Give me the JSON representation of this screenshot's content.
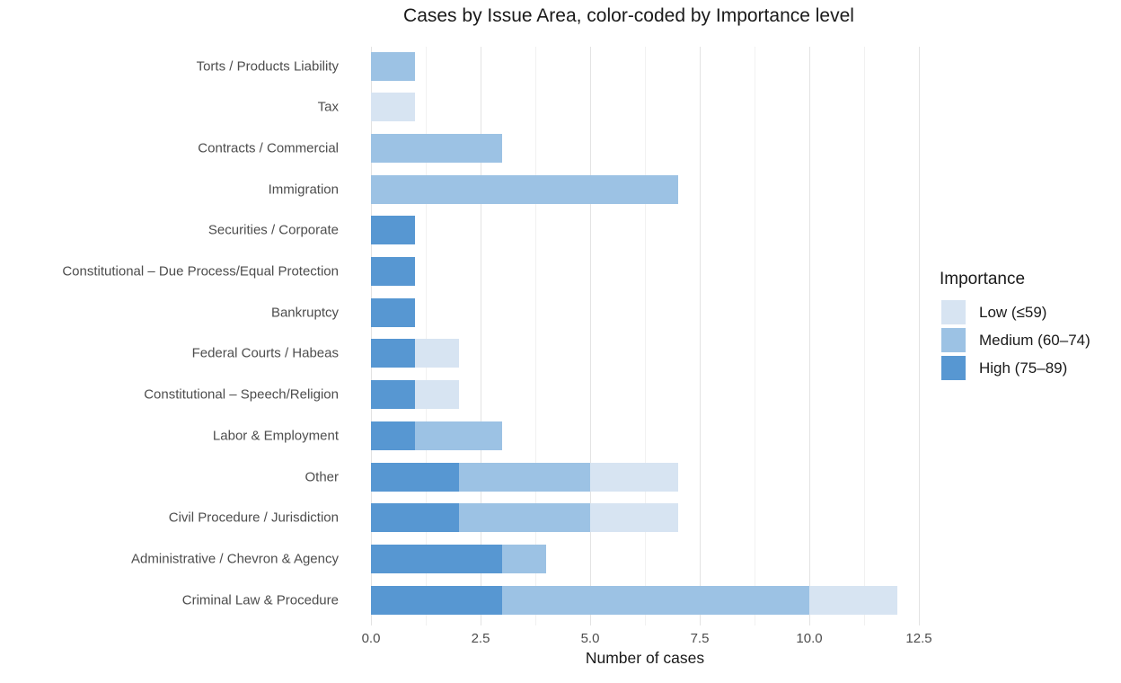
{
  "chart": {
    "title": "Cases by Issue Area, color-coded by Importance level",
    "xlabel": "Number of cases",
    "legend": {
      "title": "Importance",
      "items": [
        {
          "label": "Low (≤59)",
          "color": "#D7E4F2"
        },
        {
          "label": "Medium (60–74)",
          "color": "#9CC2E4"
        },
        {
          "label": "High (75–89)",
          "color": "#5797D2"
        }
      ]
    }
  },
  "chart_data": {
    "type": "bar",
    "orientation": "horizontal",
    "stacked": true,
    "title": "Cases by Issue Area, color-coded by Importance level",
    "xlabel": "Number of cases",
    "ylabel": "",
    "xlim": [
      0,
      12.5
    ],
    "x_ticks": [
      0.0,
      2.5,
      5.0,
      7.5,
      10.0,
      12.5
    ],
    "x_tick_labels": [
      "0.0",
      "2.5",
      "5.0",
      "7.5",
      "10.0",
      "12.5"
    ],
    "x_minor_ticks": [
      1.25,
      3.75,
      6.25,
      8.75,
      11.25
    ],
    "grid": "vertical major and minor gridlines, light gray on white",
    "legend_position": "right",
    "legend_title": "Importance",
    "categories": [
      "Torts / Products Liability",
      "Tax",
      "Contracts / Commercial",
      "Immigration",
      "Securities / Corporate",
      "Constitutional – Due Process/Equal Protection",
      "Bankruptcy",
      "Federal Courts / Habeas",
      "Constitutional – Speech/Religion",
      "Labor & Employment",
      "Other",
      "Civil Procedure / Jurisdiction",
      "Administrative / Chevron & Agency",
      "Criminal Law & Procedure"
    ],
    "series_note": "series listed in stack order from left (axis) outward; values aligned with categories top-to-bottom",
    "series": [
      {
        "name": "High (75–89)",
        "color": "#5797D2",
        "values": [
          0,
          0,
          0,
          0,
          1,
          1,
          1,
          1,
          1,
          1,
          2,
          2,
          3,
          3
        ]
      },
      {
        "name": "Medium (60–74)",
        "color": "#9CC2E4",
        "values": [
          1,
          0,
          3,
          7,
          0,
          0,
          0,
          0,
          0,
          2,
          3,
          3,
          1,
          7
        ]
      },
      {
        "name": "Low (≤59)",
        "color": "#D7E4F2",
        "values": [
          0,
          1,
          0,
          0,
          0,
          0,
          0,
          1,
          1,
          0,
          2,
          2,
          0,
          2
        ]
      }
    ],
    "totals": [
      1,
      1,
      3,
      7,
      1,
      1,
      1,
      2,
      2,
      3,
      7,
      7,
      4,
      12
    ]
  }
}
